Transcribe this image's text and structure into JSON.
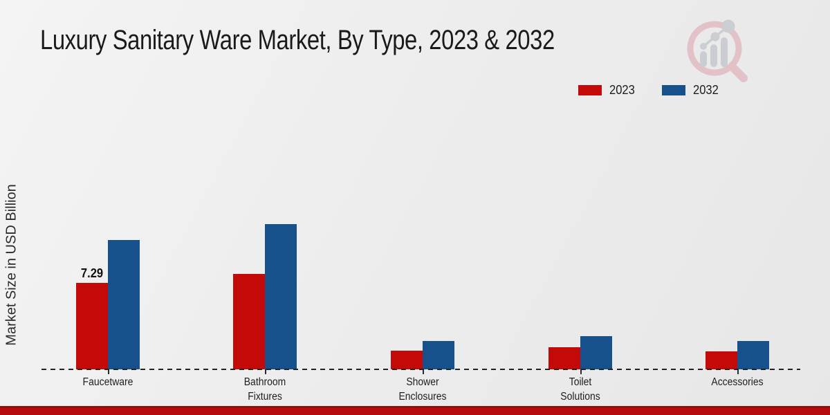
{
  "header": {
    "title": "Luxury Sanitary Ware Market, By Type, 2023 & 2032"
  },
  "watermark": {
    "icon": "market-research-magnifier-logo"
  },
  "colors": {
    "series_2023_red": "#c40909",
    "series_2032_blue": "#16518c",
    "bottom_strip_red": "#b50d0d",
    "background_gray": "#ededed"
  },
  "chart_data": {
    "type": "bar",
    "title": "Luxury Sanitary Ware Market, By Type, 2023 & 2032",
    "xlabel": "",
    "ylabel": "Market Size in USD Billion",
    "categories": [
      "Faucetware",
      "Bathroom Fixtures",
      "Shower Enclosures",
      "Toilet Solutions",
      "Accessories"
    ],
    "series": [
      {
        "name": "2023",
        "color": "#c40909",
        "values": [
          7.29,
          8.05,
          1.57,
          1.87,
          1.52
        ]
      },
      {
        "name": "2032",
        "color": "#16518c",
        "values": [
          10.9,
          12.25,
          2.39,
          2.8,
          2.39
        ]
      }
    ],
    "data_labels": [
      {
        "series": "2023",
        "category": "Faucetware",
        "text": "7.29"
      }
    ],
    "ylim": [
      0,
      13
    ],
    "grid": false,
    "legend_position": "top-right",
    "x_baseline_style": "dashed"
  }
}
